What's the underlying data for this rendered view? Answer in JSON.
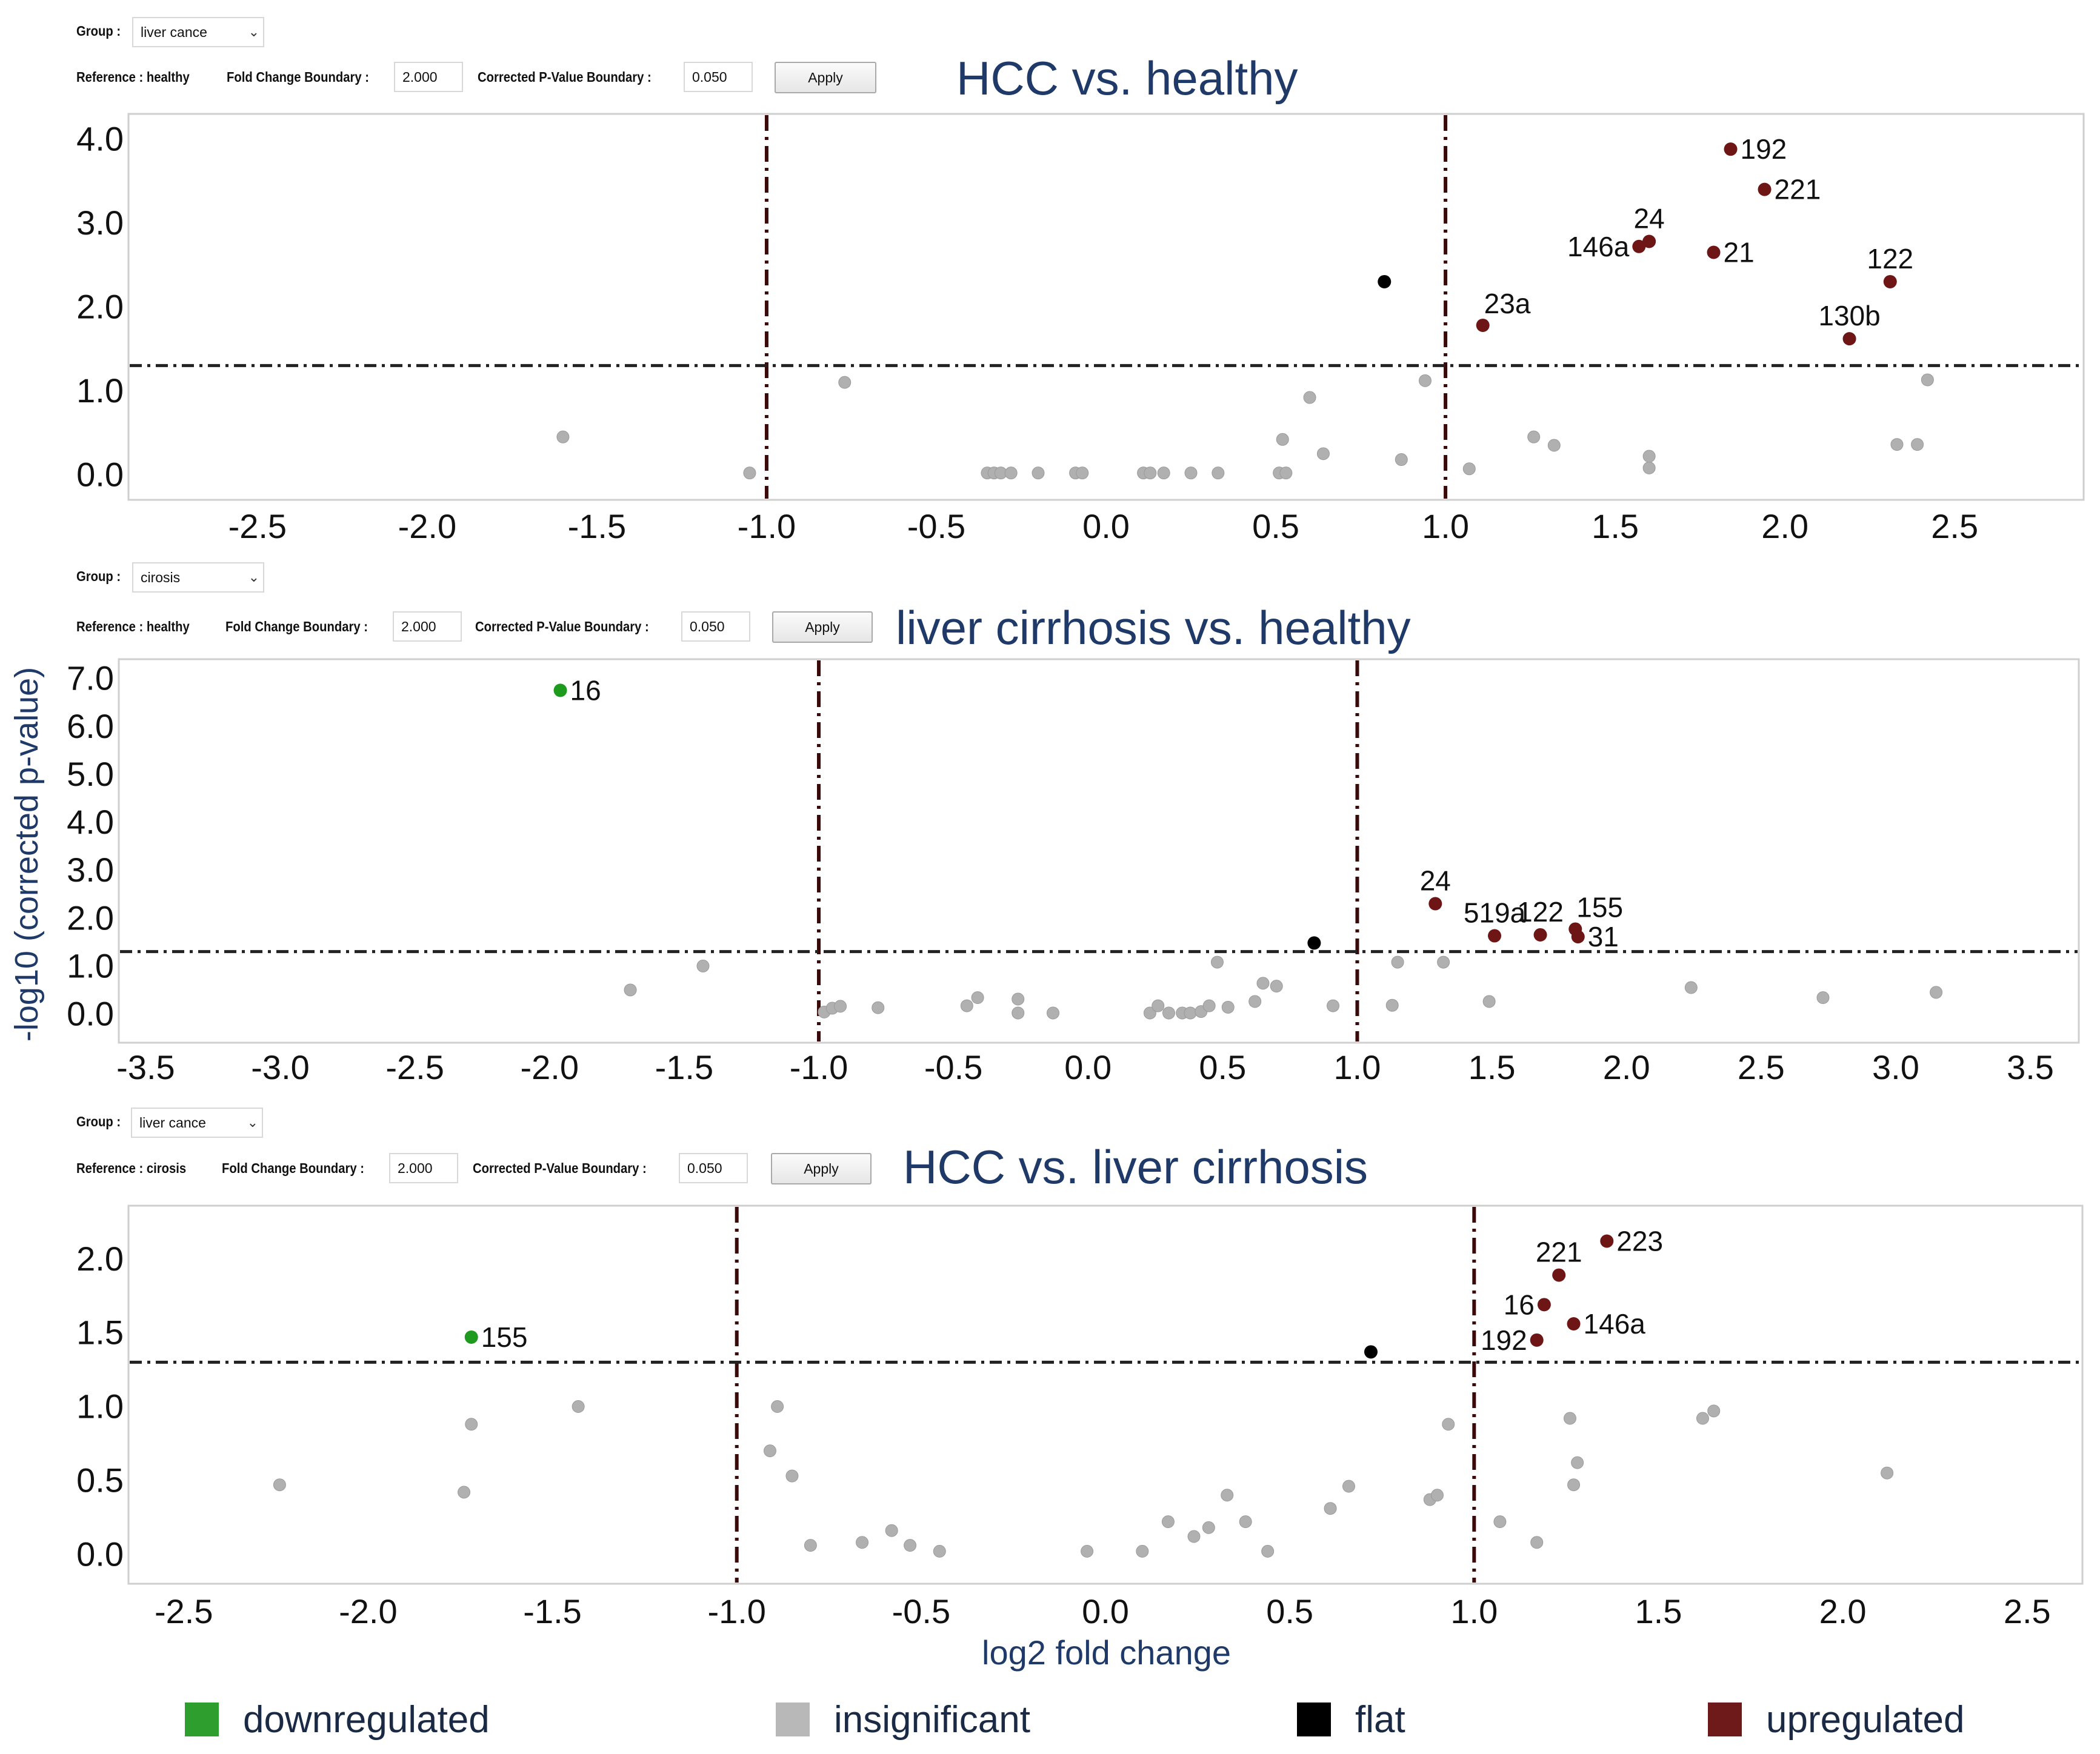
{
  "colors": {
    "downregulated": "#1e9a1e",
    "insignificant": "#b0b0b0",
    "flat": "#000000",
    "upregulated": "#6e1616",
    "title": "#1f3a68",
    "threshold_line": "#3a0a0a"
  },
  "axis_labels": {
    "y": "-log10 (corrected p-value)",
    "x": "log2 fold change"
  },
  "legend": [
    {
      "label": "downregulated",
      "color": "#2e9e2e"
    },
    {
      "label": "insignificant",
      "color": "#b8b8b8"
    },
    {
      "label": "flat",
      "color": "#000000"
    },
    {
      "label": "upregulated",
      "color": "#6e1a1a"
    }
  ],
  "panels": [
    {
      "controls": {
        "group_label": "Group :",
        "group_value": "liver cance",
        "reference_label": "Reference : healthy",
        "fold_label": "Fold Change Boundary :",
        "fold_value": "2.000",
        "pvalue_label": "Corrected P-Value Boundary :",
        "pvalue_value": "0.050",
        "apply_label": "Apply"
      }
    },
    {
      "controls": {
        "group_label": "Group :",
        "group_value": "cirosis",
        "reference_label": "Reference : healthy",
        "fold_label": "Fold Change Boundary :",
        "fold_value": "2.000",
        "pvalue_label": "Corrected P-Value Boundary :",
        "pvalue_value": "0.050",
        "apply_label": "Apply"
      }
    },
    {
      "controls": {
        "group_label": "Group :",
        "group_value": "liver cance",
        "reference_label": "Reference : cirosis",
        "fold_label": "Fold Change Boundary :",
        "fold_value": "2.000",
        "pvalue_label": "Corrected P-Value Boundary :",
        "pvalue_value": "0.050",
        "apply_label": "Apply"
      }
    }
  ],
  "chart_data": [
    {
      "type": "scatter",
      "title": "HCC  vs. healthy",
      "xlabel": "log2 fold change",
      "ylabel": "-log10 (corrected p-value)",
      "xlim": [
        -2.88,
        2.88
      ],
      "ylim": [
        -0.3,
        4.3
      ],
      "xticks": [
        -2.5,
        -2.0,
        -1.5,
        -1.0,
        -0.5,
        0.0,
        0.5,
        1.0,
        1.5,
        2.0,
        2.5
      ],
      "xtick_labels": [
        "-2.5",
        "-2.0",
        "-1.5",
        "-1.0",
        "-0.5",
        "0.0",
        "0.5",
        "1.0",
        "1.5",
        "2.0",
        "2.5"
      ],
      "yticks": [
        0,
        1,
        2,
        3,
        4
      ],
      "ytick_labels": [
        "0.0",
        "1.0",
        "2.0",
        "3.0",
        "4.0"
      ],
      "vlines": [
        -1.0,
        1.0
      ],
      "hline": 1.3,
      "points": [
        {
          "x": -1.6,
          "y": 0.45,
          "cls": "insignificant"
        },
        {
          "x": -1.05,
          "y": 0.02,
          "cls": "insignificant"
        },
        {
          "x": -0.77,
          "y": 1.1,
          "cls": "insignificant"
        },
        {
          "x": -0.35,
          "y": 0.02,
          "cls": "insignificant"
        },
        {
          "x": -0.33,
          "y": 0.02,
          "cls": "insignificant"
        },
        {
          "x": -0.31,
          "y": 0.02,
          "cls": "insignificant"
        },
        {
          "x": -0.28,
          "y": 0.02,
          "cls": "insignificant"
        },
        {
          "x": -0.2,
          "y": 0.02,
          "cls": "insignificant"
        },
        {
          "x": -0.09,
          "y": 0.02,
          "cls": "insignificant"
        },
        {
          "x": -0.07,
          "y": 0.02,
          "cls": "insignificant"
        },
        {
          "x": 0.11,
          "y": 0.02,
          "cls": "insignificant"
        },
        {
          "x": 0.13,
          "y": 0.02,
          "cls": "insignificant"
        },
        {
          "x": 0.17,
          "y": 0.02,
          "cls": "insignificant"
        },
        {
          "x": 0.25,
          "y": 0.02,
          "cls": "insignificant"
        },
        {
          "x": 0.33,
          "y": 0.02,
          "cls": "insignificant"
        },
        {
          "x": 0.51,
          "y": 0.02,
          "cls": "insignificant"
        },
        {
          "x": 0.53,
          "y": 0.02,
          "cls": "insignificant"
        },
        {
          "x": 0.52,
          "y": 0.42,
          "cls": "insignificant"
        },
        {
          "x": 0.6,
          "y": 0.92,
          "cls": "insignificant"
        },
        {
          "x": 0.64,
          "y": 0.25,
          "cls": "insignificant"
        },
        {
          "x": 0.87,
          "y": 0.18,
          "cls": "insignificant"
        },
        {
          "x": 0.94,
          "y": 1.12,
          "cls": "insignificant"
        },
        {
          "x": 1.07,
          "y": 0.07,
          "cls": "insignificant"
        },
        {
          "x": 1.26,
          "y": 0.45,
          "cls": "insignificant"
        },
        {
          "x": 1.32,
          "y": 0.35,
          "cls": "insignificant"
        },
        {
          "x": 1.6,
          "y": 0.08,
          "cls": "insignificant"
        },
        {
          "x": 1.6,
          "y": 0.22,
          "cls": "insignificant"
        },
        {
          "x": 2.33,
          "y": 0.36,
          "cls": "insignificant"
        },
        {
          "x": 2.39,
          "y": 0.36,
          "cls": "insignificant"
        },
        {
          "x": 2.42,
          "y": 1.13,
          "cls": "insignificant"
        },
        {
          "x": 0.82,
          "y": 2.3,
          "cls": "flat"
        },
        {
          "x": 1.11,
          "y": 1.78,
          "cls": "upregulated",
          "label": "23a",
          "lpos": "tr"
        },
        {
          "x": 1.57,
          "y": 2.72,
          "cls": "upregulated",
          "label": "146a",
          "lpos": "l"
        },
        {
          "x": 1.6,
          "y": 2.78,
          "cls": "upregulated",
          "label": "24",
          "lpos": "t"
        },
        {
          "x": 1.79,
          "y": 2.65,
          "cls": "upregulated",
          "label": "21",
          "lpos": "r"
        },
        {
          "x": 1.84,
          "y": 3.88,
          "cls": "upregulated",
          "label": "192",
          "lpos": "r"
        },
        {
          "x": 1.94,
          "y": 3.4,
          "cls": "upregulated",
          "label": "221",
          "lpos": "r"
        },
        {
          "x": 2.19,
          "y": 1.62,
          "cls": "upregulated",
          "label": "130b",
          "lpos": "t"
        },
        {
          "x": 2.31,
          "y": 2.3,
          "cls": "upregulated",
          "label": "122",
          "lpos": "t"
        }
      ]
    },
    {
      "type": "scatter",
      "title": "liver cirrhosis vs. healthy",
      "xlabel": "log2 fold change",
      "ylabel": "-log10 (corrected p-value)",
      "xlim": [
        -3.6,
        3.68
      ],
      "ylim": [
        -0.6,
        7.4
      ],
      "xticks": [
        -3.5,
        -3.0,
        -2.5,
        -2.0,
        -1.5,
        -1.0,
        -0.5,
        0.0,
        0.5,
        1.0,
        1.5,
        2.0,
        2.5,
        3.0,
        3.5
      ],
      "xtick_labels": [
        "-3.5",
        "-3.0",
        "-2.5",
        "-2.0",
        "-1.5",
        "-1.0",
        "-0.5",
        "0.0",
        "0.5",
        "1.0",
        "1.5",
        "2.0",
        "2.5",
        "3.0",
        "3.5"
      ],
      "yticks": [
        0,
        1,
        2,
        3,
        4,
        5,
        6,
        7
      ],
      "ytick_labels": [
        "0.0",
        "1.0",
        "2.0",
        "3.0",
        "4.0",
        "5.0",
        "6.0",
        "7.0"
      ],
      "vlines": [
        -1.0,
        1.0
      ],
      "hline": 1.3,
      "points": [
        {
          "x": -1.7,
          "y": 0.5,
          "cls": "insignificant"
        },
        {
          "x": -1.43,
          "y": 1.0,
          "cls": "insignificant"
        },
        {
          "x": -0.98,
          "y": 0.04,
          "cls": "insignificant"
        },
        {
          "x": -0.95,
          "y": 0.12,
          "cls": "insignificant"
        },
        {
          "x": -0.92,
          "y": 0.16,
          "cls": "insignificant"
        },
        {
          "x": -0.78,
          "y": 0.13,
          "cls": "insignificant"
        },
        {
          "x": -0.45,
          "y": 0.17,
          "cls": "insignificant"
        },
        {
          "x": -0.41,
          "y": 0.34,
          "cls": "insignificant"
        },
        {
          "x": -0.26,
          "y": 0.31,
          "cls": "insignificant"
        },
        {
          "x": -0.26,
          "y": 0.02,
          "cls": "insignificant"
        },
        {
          "x": -0.13,
          "y": 0.02,
          "cls": "insignificant"
        },
        {
          "x": 0.23,
          "y": 0.02,
          "cls": "insignificant"
        },
        {
          "x": 0.26,
          "y": 0.17,
          "cls": "insignificant"
        },
        {
          "x": 0.3,
          "y": 0.02,
          "cls": "insignificant"
        },
        {
          "x": 0.35,
          "y": 0.02,
          "cls": "insignificant"
        },
        {
          "x": 0.38,
          "y": 0.02,
          "cls": "insignificant"
        },
        {
          "x": 0.42,
          "y": 0.05,
          "cls": "insignificant"
        },
        {
          "x": 0.45,
          "y": 0.17,
          "cls": "insignificant"
        },
        {
          "x": 0.52,
          "y": 0.14,
          "cls": "insignificant"
        },
        {
          "x": 0.48,
          "y": 1.08,
          "cls": "insignificant"
        },
        {
          "x": 0.62,
          "y": 0.26,
          "cls": "insignificant"
        },
        {
          "x": 0.65,
          "y": 0.64,
          "cls": "insignificant"
        },
        {
          "x": 0.7,
          "y": 0.58,
          "cls": "insignificant"
        },
        {
          "x": 0.91,
          "y": 0.17,
          "cls": "insignificant"
        },
        {
          "x": 1.13,
          "y": 0.18,
          "cls": "insignificant"
        },
        {
          "x": 1.15,
          "y": 1.08,
          "cls": "insignificant"
        },
        {
          "x": 1.32,
          "y": 1.08,
          "cls": "insignificant"
        },
        {
          "x": 1.49,
          "y": 0.26,
          "cls": "insignificant"
        },
        {
          "x": 2.24,
          "y": 0.55,
          "cls": "insignificant"
        },
        {
          "x": 2.73,
          "y": 0.34,
          "cls": "insignificant"
        },
        {
          "x": 3.15,
          "y": 0.45,
          "cls": "insignificant"
        },
        {
          "x": 0.84,
          "y": 1.48,
          "cls": "flat"
        },
        {
          "x": -1.96,
          "y": 6.75,
          "cls": "downregulated",
          "label": "16",
          "lpos": "r"
        },
        {
          "x": 1.29,
          "y": 2.3,
          "cls": "upregulated",
          "label": "24",
          "lpos": "t"
        },
        {
          "x": 1.51,
          "y": 1.63,
          "cls": "upregulated",
          "label": "519a",
          "lpos": "t"
        },
        {
          "x": 1.68,
          "y": 1.65,
          "cls": "upregulated",
          "label": "122",
          "lpos": "t"
        },
        {
          "x": 1.81,
          "y": 1.77,
          "cls": "upregulated",
          "label": "155",
          "lpos": "tr"
        },
        {
          "x": 1.82,
          "y": 1.61,
          "cls": "upregulated",
          "label": "31",
          "lpos": "r"
        }
      ]
    },
    {
      "type": "scatter",
      "title": "HCC vs. liver cirrhosis",
      "xlabel": "log2 fold change",
      "ylabel": "-log10 (corrected p-value)",
      "xlim": [
        -2.65,
        2.65
      ],
      "ylim": [
        -0.2,
        2.36
      ],
      "xticks": [
        -2.5,
        -2.0,
        -1.5,
        -1.0,
        -0.5,
        0.0,
        0.5,
        1.0,
        1.5,
        2.0,
        2.5
      ],
      "xtick_labels": [
        "-2.5",
        "-2.0",
        "-1.5",
        "-1.0",
        "-0.5",
        "0.0",
        "0.5",
        "1.0",
        "1.5",
        "2.0",
        "2.5"
      ],
      "yticks": [
        0.0,
        0.5,
        1.0,
        1.5,
        2.0
      ],
      "ytick_labels": [
        "0.0",
        "0.5",
        "1.0",
        "1.5",
        "2.0"
      ],
      "vlines": [
        -1.0,
        1.0
      ],
      "hline": 1.3,
      "points": [
        {
          "x": -2.24,
          "y": 0.47,
          "cls": "insignificant"
        },
        {
          "x": -1.74,
          "y": 0.42,
          "cls": "insignificant"
        },
        {
          "x": -1.72,
          "y": 0.88,
          "cls": "insignificant"
        },
        {
          "x": -1.43,
          "y": 1.0,
          "cls": "insignificant"
        },
        {
          "x": -0.91,
          "y": 0.7,
          "cls": "insignificant"
        },
        {
          "x": -0.89,
          "y": 1.0,
          "cls": "insignificant"
        },
        {
          "x": -0.85,
          "y": 0.53,
          "cls": "insignificant"
        },
        {
          "x": -0.8,
          "y": 0.06,
          "cls": "insignificant"
        },
        {
          "x": -0.66,
          "y": 0.08,
          "cls": "insignificant"
        },
        {
          "x": -0.58,
          "y": 0.16,
          "cls": "insignificant"
        },
        {
          "x": -0.53,
          "y": 0.06,
          "cls": "insignificant"
        },
        {
          "x": -0.45,
          "y": 0.02,
          "cls": "insignificant"
        },
        {
          "x": -0.05,
          "y": 0.02,
          "cls": "insignificant"
        },
        {
          "x": 0.1,
          "y": 0.02,
          "cls": "insignificant"
        },
        {
          "x": 0.17,
          "y": 0.22,
          "cls": "insignificant"
        },
        {
          "x": 0.24,
          "y": 0.12,
          "cls": "insignificant"
        },
        {
          "x": 0.28,
          "y": 0.18,
          "cls": "insignificant"
        },
        {
          "x": 0.33,
          "y": 0.4,
          "cls": "insignificant"
        },
        {
          "x": 0.38,
          "y": 0.22,
          "cls": "insignificant"
        },
        {
          "x": 0.44,
          "y": 0.02,
          "cls": "insignificant"
        },
        {
          "x": 0.61,
          "y": 0.31,
          "cls": "insignificant"
        },
        {
          "x": 0.66,
          "y": 0.46,
          "cls": "insignificant"
        },
        {
          "x": 0.88,
          "y": 0.37,
          "cls": "insignificant"
        },
        {
          "x": 0.9,
          "y": 0.4,
          "cls": "insignificant"
        },
        {
          "x": 0.93,
          "y": 0.88,
          "cls": "insignificant"
        },
        {
          "x": 1.07,
          "y": 0.22,
          "cls": "insignificant"
        },
        {
          "x": 1.17,
          "y": 0.08,
          "cls": "insignificant"
        },
        {
          "x": 1.26,
          "y": 0.92,
          "cls": "insignificant"
        },
        {
          "x": 1.28,
          "y": 0.62,
          "cls": "insignificant"
        },
        {
          "x": 1.27,
          "y": 0.47,
          "cls": "insignificant"
        },
        {
          "x": 1.62,
          "y": 0.92,
          "cls": "insignificant"
        },
        {
          "x": 1.65,
          "y": 0.97,
          "cls": "insignificant"
        },
        {
          "x": 2.12,
          "y": 0.55,
          "cls": "insignificant"
        },
        {
          "x": 0.72,
          "y": 1.37,
          "cls": "flat"
        },
        {
          "x": -1.72,
          "y": 1.47,
          "cls": "downregulated",
          "label": "155",
          "lpos": "r"
        },
        {
          "x": 1.36,
          "y": 2.12,
          "cls": "upregulated",
          "label": "223",
          "lpos": "r"
        },
        {
          "x": 1.23,
          "y": 1.89,
          "cls": "upregulated",
          "label": "221",
          "lpos": "t"
        },
        {
          "x": 1.19,
          "y": 1.69,
          "cls": "upregulated",
          "label": "16",
          "lpos": "l"
        },
        {
          "x": 1.27,
          "y": 1.56,
          "cls": "upregulated",
          "label": "146a",
          "lpos": "r"
        },
        {
          "x": 1.17,
          "y": 1.45,
          "cls": "upregulated",
          "label": "192",
          "lpos": "l"
        }
      ]
    }
  ]
}
